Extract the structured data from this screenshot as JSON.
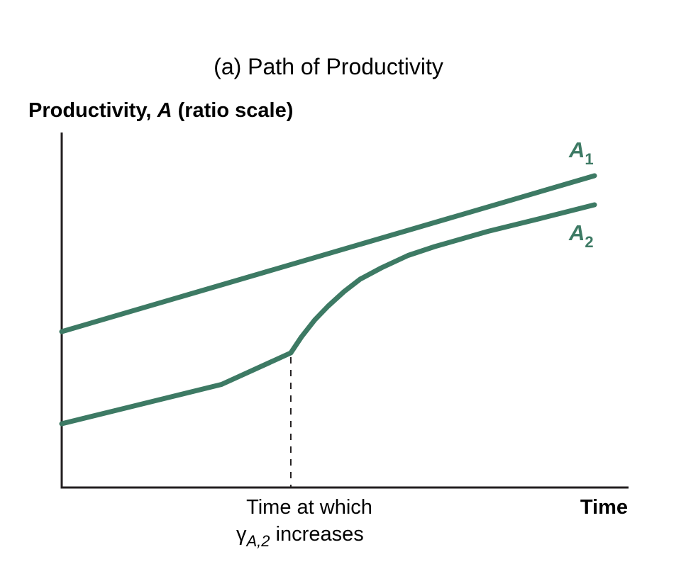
{
  "chart_data": {
    "type": "line",
    "title": "(a) Path of Productivity",
    "ylabel_prefix": "Productivity, ",
    "ylabel_var": "A",
    "ylabel_suffix": " (ratio scale)",
    "xlabel": "Time",
    "x_range": [
      0,
      10
    ],
    "y_range": [
      0,
      10
    ],
    "series": [
      {
        "name": "A1",
        "label_main": "A",
        "label_sub": "1",
        "color": "#3d7a64",
        "x": [
          0,
          10
        ],
        "y": [
          4.4,
          8.8
        ]
      },
      {
        "name": "A2",
        "label_main": "A",
        "label_sub": "2",
        "color": "#3d7a64",
        "x": [
          0,
          1,
          2,
          3,
          4.3,
          4.5,
          4.75,
          5,
          5.3,
          5.6,
          6,
          6.5,
          7,
          8,
          9,
          10
        ],
        "y": [
          1.8,
          2.17,
          2.54,
          2.91,
          3.8,
          4.25,
          4.73,
          5.12,
          5.53,
          5.88,
          6.2,
          6.55,
          6.8,
          7.23,
          7.6,
          7.98
        ]
      }
    ],
    "marker": {
      "x": 4.3,
      "line1": "Time at which",
      "gamma": "γ",
      "sub": "A,2",
      "line2": " increases"
    }
  }
}
